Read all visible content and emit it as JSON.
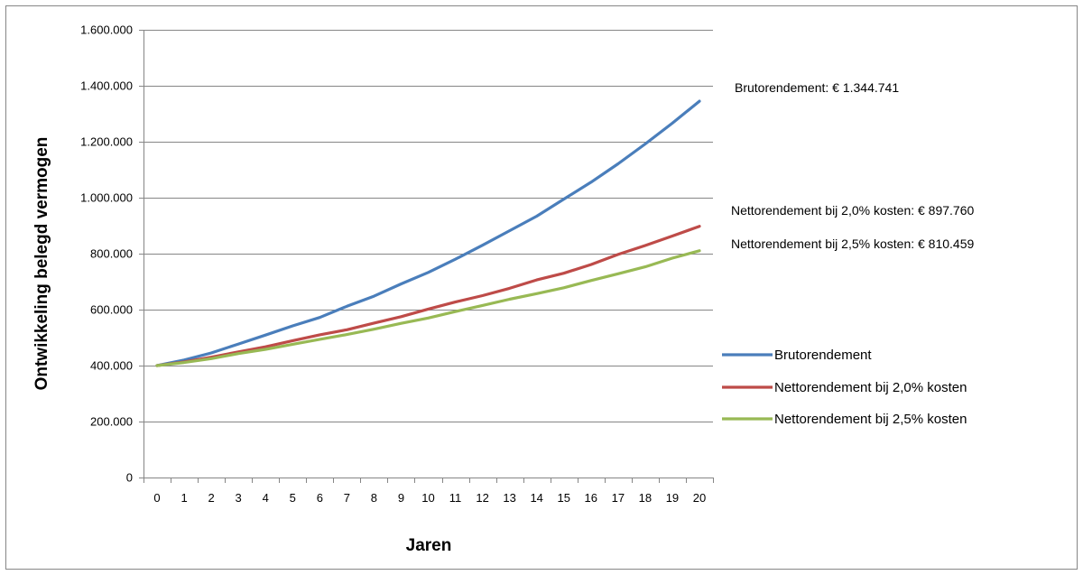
{
  "chart_data": {
    "type": "line",
    "title": "",
    "xlabel": "Jaren",
    "ylabel": "Ontwikkeling belegd vermogen",
    "ylim": [
      0,
      1600000
    ],
    "y_tick_values": [
      0,
      200000,
      400000,
      600000,
      800000,
      1000000,
      1200000,
      1400000,
      1600000
    ],
    "y_tick_labels": [
      "0",
      "200.000",
      "400.000",
      "600.000",
      "800.000",
      "1.000.000",
      "1.200.000",
      "1.400.000",
      "1.600.000"
    ],
    "x": [
      0,
      1,
      2,
      3,
      4,
      5,
      6,
      7,
      8,
      9,
      10,
      11,
      12,
      13,
      14,
      15,
      16,
      17,
      18,
      19,
      20
    ],
    "x_tick_labels": [
      "0",
      "1",
      "2",
      "3",
      "4",
      "5",
      "6",
      "7",
      "8",
      "9",
      "10",
      "11",
      "12",
      "13",
      "14",
      "15",
      "16",
      "17",
      "18",
      "19",
      "20"
    ],
    "grid": "horizontal",
    "legend_position": "right",
    "series": [
      {
        "name": "Brutorendement",
        "color": "#4a7ebb",
        "values": [
          400000,
          420000,
          445000,
          477000,
          509000,
          542000,
          572000,
          612000,
          648000,
          692000,
          733000,
          780000,
          830000,
          882000,
          934000,
          995000,
          1055000,
          1121000,
          1192000,
          1266000,
          1344741
        ]
      },
      {
        "name": "Nettorendement bij 2,0% kosten",
        "color": "#be4b48",
        "values": [
          400000,
          413000,
          430000,
          449000,
          467000,
          489000,
          510000,
          528000,
          552000,
          575000,
          602000,
          627000,
          650000,
          676000,
          706000,
          730000,
          761000,
          797000,
          829000,
          863000,
          897760
        ]
      },
      {
        "name": "Nettorendement bij 2,5% kosten",
        "color": "#98b954",
        "values": [
          400000,
          411000,
          425000,
          443000,
          458000,
          476000,
          494000,
          511000,
          530000,
          551000,
          570000,
          593000,
          615000,
          637000,
          657000,
          678000,
          704000,
          728000,
          753000,
          784000,
          810459
        ]
      }
    ],
    "annotations": [
      "Brutorendement: € 1.344.741",
      "Nettorendement bij 2,0% kosten: € 897.760",
      "Nettorendement bij 2,5% kosten: € 810.459"
    ]
  },
  "colors": {
    "frame": "#868686",
    "gridline": "#868686",
    "axis": "#868686"
  }
}
